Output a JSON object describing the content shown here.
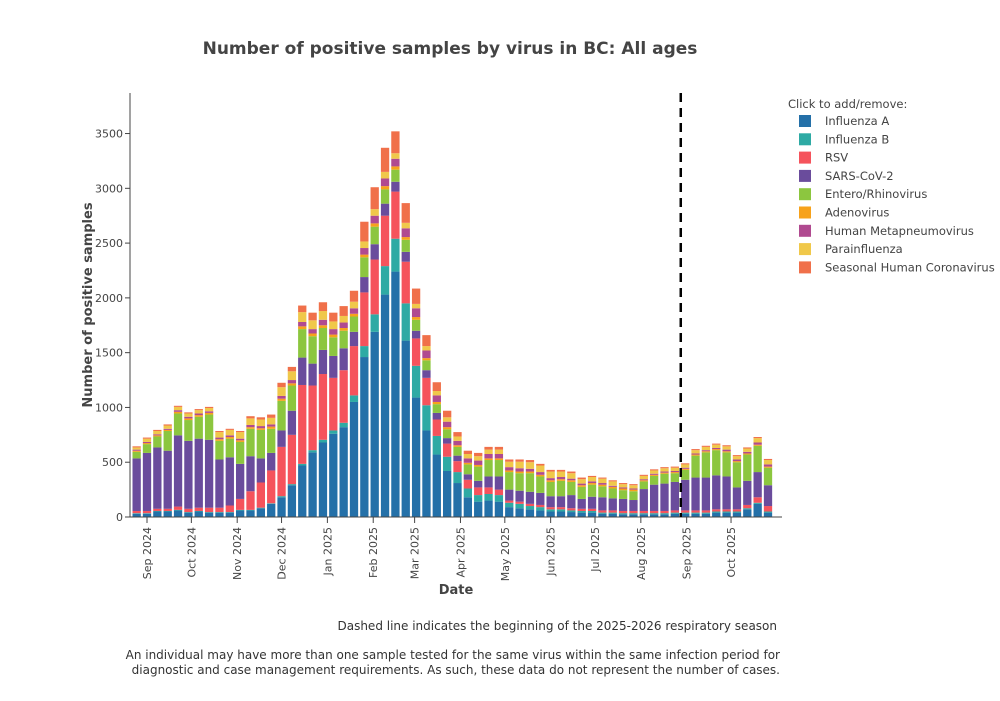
{
  "chart_data": {
    "type": "bar",
    "stacked": true,
    "title": "Number of positive samples by virus in BC: All ages",
    "xlabel": "Date",
    "ylabel": "Number of positive samples",
    "ylim": [
      0,
      3870
    ],
    "yticks": [
      0,
      500,
      1000,
      1500,
      2000,
      2500,
      3000,
      3500
    ],
    "xticks": [
      {
        "date": "2024-09-01",
        "label": "Sep 2024"
      },
      {
        "date": "2024-10-01",
        "label": "Oct 2024"
      },
      {
        "date": "2024-11-01",
        "label": "Nov 2024"
      },
      {
        "date": "2024-12-01",
        "label": "Dec 2024"
      },
      {
        "date": "2025-01-01",
        "label": "Jan 2025"
      },
      {
        "date": "2025-02-01",
        "label": "Feb 2025"
      },
      {
        "date": "2025-03-01",
        "label": "Mar 2025"
      },
      {
        "date": "2025-04-01",
        "label": "Apr 2025"
      },
      {
        "date": "2025-05-01",
        "label": "May 2025"
      },
      {
        "date": "2025-06-01",
        "label": "Jun 2025"
      },
      {
        "date": "2025-07-01",
        "label": "Jul 2025"
      },
      {
        "date": "2025-08-01",
        "label": "Aug 2025"
      },
      {
        "date": "2025-09-01",
        "label": "Sep 2025"
      },
      {
        "date": "2025-10-01",
        "label": "Oct 2025"
      }
    ],
    "grid": false,
    "legend_title": "Click to add/remove:",
    "legend_position": "right",
    "season_start_line": "2025-08-28",
    "x": [
      "2024-08-25",
      "2024-09-01",
      "2024-09-08",
      "2024-09-15",
      "2024-09-22",
      "2024-09-29",
      "2024-10-06",
      "2024-10-13",
      "2024-10-20",
      "2024-10-27",
      "2024-11-03",
      "2024-11-10",
      "2024-11-17",
      "2024-11-24",
      "2024-12-01",
      "2024-12-08",
      "2024-12-15",
      "2024-12-22",
      "2024-12-29",
      "2025-01-05",
      "2025-01-12",
      "2025-01-19",
      "2025-01-26",
      "2025-02-02",
      "2025-02-09",
      "2025-02-16",
      "2025-02-23",
      "2025-03-02",
      "2025-03-09",
      "2025-03-16",
      "2025-03-23",
      "2025-03-30",
      "2025-04-06",
      "2025-04-13",
      "2025-04-20",
      "2025-04-27",
      "2025-05-04",
      "2025-05-11",
      "2025-05-18",
      "2025-05-25",
      "2025-06-01",
      "2025-06-08",
      "2025-06-15",
      "2025-06-22",
      "2025-06-29",
      "2025-07-06",
      "2025-07-13",
      "2025-07-20",
      "2025-07-27",
      "2025-08-03",
      "2025-08-10",
      "2025-08-17",
      "2025-08-24",
      "2025-08-31",
      "2025-09-07",
      "2025-09-14",
      "2025-09-21",
      "2025-09-28",
      "2025-10-05",
      "2025-10-12",
      "2025-10-19",
      "2025-10-26"
    ],
    "series": [
      {
        "name": "Influenza A",
        "color": "#2470a8",
        "values": [
          30,
          30,
          50,
          50,
          60,
          40,
          50,
          40,
          40,
          40,
          60,
          60,
          80,
          120,
          180,
          290,
          470,
          590,
          680,
          760,
          820,
          1050,
          1460,
          1690,
          2030,
          2240,
          1610,
          1090,
          790,
          570,
          420,
          310,
          180,
          140,
          150,
          140,
          90,
          80,
          70,
          60,
          50,
          50,
          45,
          40,
          40,
          30,
          30,
          25,
          25,
          25,
          25,
          25,
          30,
          30,
          30,
          30,
          40,
          40,
          40,
          70,
          120,
          40
        ]
      },
      {
        "name": "Influenza B",
        "color": "#2eaaa4",
        "values": [
          5,
          5,
          5,
          5,
          5,
          5,
          5,
          5,
          5,
          5,
          5,
          5,
          5,
          5,
          10,
          10,
          15,
          20,
          25,
          30,
          40,
          60,
          100,
          160,
          260,
          300,
          340,
          290,
          230,
          170,
          130,
          100,
          80,
          60,
          60,
          60,
          40,
          40,
          30,
          30,
          20,
          20,
          15,
          15,
          15,
          10,
          10,
          10,
          10,
          10,
          10,
          10,
          10,
          10,
          10,
          10,
          10,
          10,
          10,
          10,
          10,
          10
        ]
      },
      {
        "name": "RSV",
        "color": "#f5535c",
        "values": [
          20,
          20,
          20,
          20,
          30,
          30,
          30,
          40,
          40,
          60,
          100,
          170,
          230,
          300,
          450,
          450,
          720,
          590,
          600,
          480,
          480,
          450,
          490,
          500,
          460,
          430,
          380,
          250,
          250,
          150,
          120,
          100,
          80,
          70,
          60,
          50,
          20,
          20,
          20,
          20,
          20,
          20,
          20,
          20,
          20,
          20,
          20,
          20,
          20,
          20,
          20,
          20,
          20,
          20,
          20,
          20,
          20,
          20,
          20,
          30,
          50,
          50
        ]
      },
      {
        "name": "SARS-CoV-2",
        "color": "#6a4c9c",
        "values": [
          480,
          530,
          560,
          530,
          650,
          620,
          630,
          620,
          440,
          440,
          320,
          320,
          220,
          160,
          150,
          220,
          250,
          200,
          220,
          200,
          200,
          130,
          140,
          140,
          110,
          90,
          90,
          70,
          70,
          60,
          50,
          50,
          50,
          60,
          100,
          120,
          100,
          100,
          110,
          110,
          100,
          100,
          120,
          90,
          110,
          120,
          110,
          110,
          100,
          200,
          240,
          250,
          260,
          280,
          300,
          300,
          310,
          300,
          200,
          220,
          230,
          190
        ]
      },
      {
        "name": "Entero/Rhinovirus",
        "color": "#8cc63f",
        "values": [
          60,
          80,
          100,
          180,
          200,
          190,
          200,
          230,
          170,
          170,
          200,
          250,
          260,
          220,
          270,
          230,
          260,
          250,
          200,
          170,
          160,
          140,
          180,
          160,
          130,
          110,
          110,
          100,
          90,
          80,
          80,
          80,
          90,
          130,
          150,
          150,
          160,
          160,
          170,
          150,
          130,
          140,
          120,
          110,
          110,
          100,
          90,
          80,
          80,
          70,
          80,
          90,
          80,
          90,
          200,
          230,
          230,
          220,
          230,
          240,
          240,
          160
        ]
      },
      {
        "name": "Adenovirus",
        "color": "#f7a21b",
        "values": [
          10,
          10,
          10,
          10,
          15,
          15,
          15,
          15,
          15,
          15,
          15,
          15,
          15,
          20,
          20,
          20,
          25,
          25,
          25,
          25,
          25,
          25,
          25,
          30,
          30,
          30,
          25,
          25,
          20,
          20,
          20,
          15,
          15,
          15,
          15,
          15,
          15,
          15,
          15,
          15,
          15,
          15,
          15,
          15,
          15,
          15,
          15,
          15,
          15,
          10,
          10,
          10,
          10,
          10,
          10,
          10,
          10,
          10,
          10,
          10,
          10,
          10
        ]
      },
      {
        "name": "Human Metapneumovirus",
        "color": "#b04a90",
        "values": [
          10,
          10,
          10,
          10,
          15,
          15,
          15,
          15,
          15,
          15,
          15,
          20,
          20,
          20,
          25,
          30,
          40,
          40,
          50,
          50,
          50,
          50,
          60,
          70,
          70,
          70,
          80,
          80,
          70,
          60,
          50,
          40,
          40,
          40,
          40,
          40,
          30,
          30,
          25,
          25,
          20,
          20,
          15,
          15,
          15,
          15,
          10,
          10,
          10,
          10,
          10,
          10,
          10,
          10,
          10,
          10,
          10,
          15,
          15,
          15,
          20,
          20
        ]
      },
      {
        "name": "Parainfluenza",
        "color": "#f0c84a",
        "values": [
          20,
          30,
          30,
          30,
          30,
          30,
          30,
          30,
          50,
          50,
          60,
          60,
          60,
          60,
          80,
          80,
          90,
          80,
          80,
          70,
          60,
          60,
          60,
          60,
          60,
          50,
          50,
          40,
          40,
          40,
          40,
          40,
          40,
          40,
          40,
          40,
          50,
          60,
          60,
          60,
          60,
          50,
          50,
          40,
          40,
          40,
          40,
          30,
          30,
          30,
          30,
          30,
          30,
          30,
          30,
          30,
          30,
          30,
          30,
          30,
          40,
          40
        ]
      },
      {
        "name": "Seasonal Human Coronavirus",
        "color": "#f0704a",
        "values": [
          10,
          10,
          10,
          10,
          10,
          10,
          10,
          10,
          10,
          10,
          10,
          20,
          20,
          30,
          40,
          40,
          60,
          70,
          80,
          80,
          90,
          100,
          180,
          200,
          220,
          200,
          180,
          140,
          100,
          80,
          60,
          40,
          30,
          30,
          25,
          25,
          20,
          20,
          20,
          15,
          15,
          15,
          15,
          15,
          10,
          10,
          10,
          10,
          10,
          10,
          10,
          10,
          10,
          10,
          10,
          10,
          10,
          10,
          10,
          10,
          10,
          10
        ]
      }
    ]
  },
  "notes": {
    "dashed_line": "Dashed line indicates the beginning of the 2025-2026 respiratory season",
    "disclaimer_line1": "An individual may have more than one sample tested for the same virus within the same infection period for",
    "disclaimer_line2": "diagnostic and case management requirements. As such, these data do not represent the number of cases."
  }
}
